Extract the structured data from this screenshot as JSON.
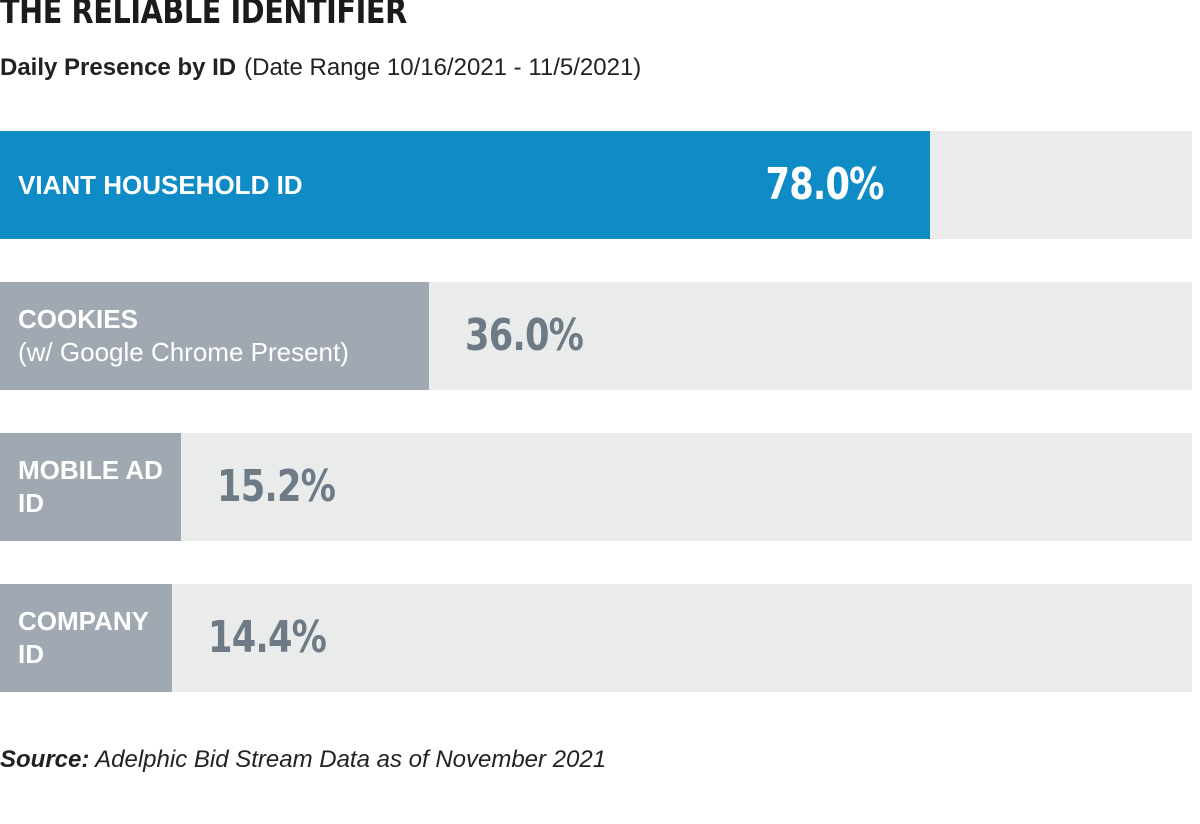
{
  "title": "THE RELIABLE IDENTIFIER",
  "subtitle": {
    "main": "Daily Presence by ID",
    "range": "(Date Range 10/16/2021 - 11/5/2021)"
  },
  "source": {
    "label": "Source:",
    "text": "Adelphic Bid Stream Data as of November 2021"
  },
  "colors": {
    "highlight_bar": "#0f8cc5",
    "other_bar": "#a0a9b1",
    "track": "#eaeceb",
    "outside_value": "#6e7a85"
  },
  "chart_data": {
    "type": "bar",
    "orientation": "horizontal",
    "xlim": [
      0,
      100
    ],
    "unit": "%",
    "grid": false,
    "categories": [
      {
        "lines": [
          "VIANT HOUSEHOLD ID"
        ],
        "value": 78.0,
        "value_label": "78.0%",
        "highlight": true
      },
      {
        "lines": [
          "COOKIES",
          "(w/ Google Chrome Present)"
        ],
        "value": 36.0,
        "value_label": "36.0%",
        "highlight": false
      },
      {
        "lines": [
          "MOBILE AD",
          "ID"
        ],
        "value": 15.2,
        "value_label": "15.2%",
        "highlight": false
      },
      {
        "lines": [
          "COMPANY",
          "ID"
        ],
        "value": 14.4,
        "value_label": "14.4%",
        "highlight": false
      }
    ]
  }
}
